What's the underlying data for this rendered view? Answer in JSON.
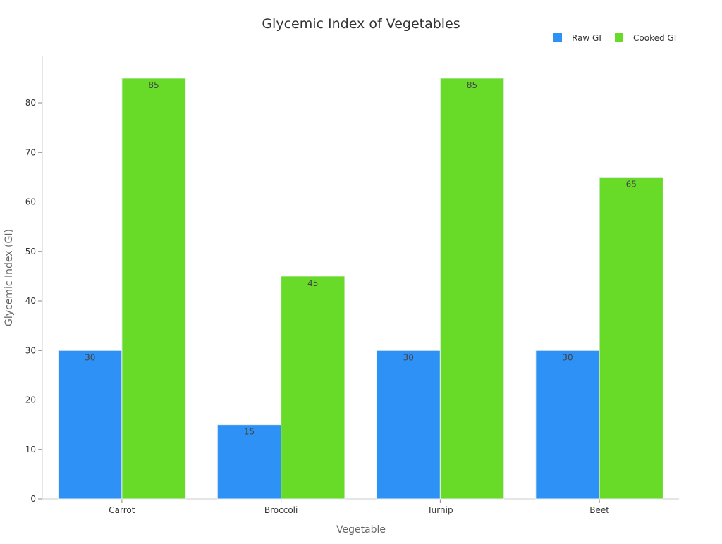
{
  "chart_data": {
    "type": "bar",
    "title": "Glycemic Index of Vegetables",
    "xlabel": "Vegetable",
    "ylabel": "Glycemic Index (GI)",
    "categories": [
      "Carrot",
      "Broccoli",
      "Turnip",
      "Beet"
    ],
    "series": [
      {
        "name": "Raw GI",
        "values": [
          30,
          15,
          30,
          30
        ],
        "color": "#2E91F6"
      },
      {
        "name": "Cooked GI",
        "values": [
          85,
          45,
          85,
          65
        ],
        "color": "#67DB28"
      }
    ],
    "ylim": [
      0,
      89.4
    ],
    "yticks": [
      0,
      10,
      20,
      30,
      40,
      50,
      60,
      70,
      80
    ],
    "grid": false,
    "legend": "top-right",
    "data_labels": true
  }
}
